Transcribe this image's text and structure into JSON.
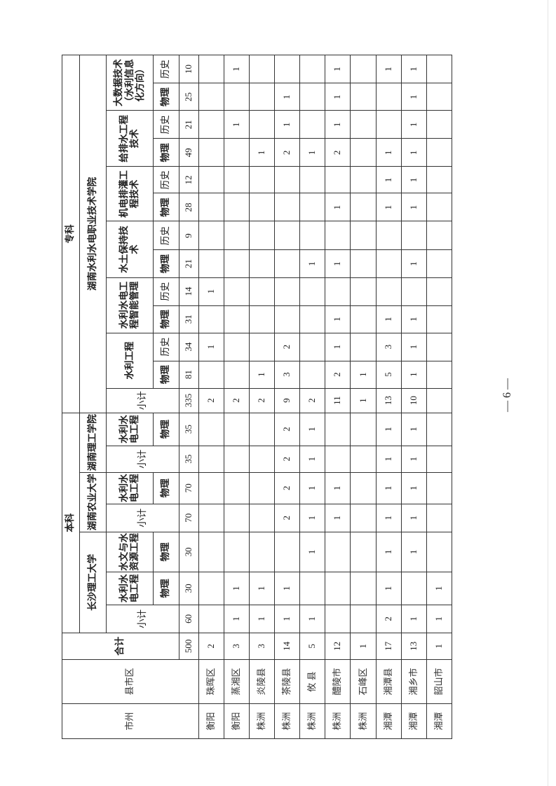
{
  "header": {
    "city": "市州",
    "district": "县市区",
    "total": "合计",
    "undergrad": "本科",
    "vocational": "专科",
    "institutions": [
      "长沙理工大学",
      "湖南农业大学",
      "湖南理工学院",
      "湖南水利水电职业技术学院"
    ],
    "subtotal": "小计",
    "majors": {
      "cs_hydro": "水利水电工程",
      "cs_hydrology": "水文与水资源工程",
      "agri_hydro": "水利水电工程",
      "hnit_hydro": "水利水电工程",
      "water_eng": "水利工程",
      "smart_mgmt": "水利水电工程智能管理",
      "soil": "水土保持技术",
      "irrigation": "机电排灌工程技术",
      "drainage": "给排水工程技术",
      "bigdata": "大数据技术（水利信息化方向）"
    },
    "physics": "物理",
    "history": "历史"
  },
  "totals": [
    "500",
    "60",
    "30",
    "30",
    "70",
    "70",
    "35",
    "35",
    "335",
    "81",
    "34",
    "31",
    "14",
    "21",
    "9",
    "28",
    "12",
    "49",
    "21",
    "25",
    "10"
  ],
  "rows": [
    {
      "city": "衡阳",
      "district": "珠晖区",
      "values": [
        "2",
        "",
        "",
        "",
        "",
        "",
        "",
        "",
        "2",
        "",
        "1",
        "",
        "1",
        "",
        "",
        "",
        "",
        "",
        "",
        "",
        ""
      ]
    },
    {
      "city": "衡阳",
      "district": "蒸湘区",
      "values": [
        "3",
        "1",
        "1",
        "",
        "",
        "",
        "",
        "",
        "2",
        "",
        "",
        "",
        "",
        "",
        "",
        "",
        "",
        "",
        "1",
        "",
        "1"
      ]
    },
    {
      "city": "株洲",
      "district": "炎陵县",
      "values": [
        "3",
        "1",
        "1",
        "",
        "",
        "",
        "",
        "",
        "2",
        "1",
        "",
        "",
        "",
        "",
        "",
        "",
        "",
        "1",
        "",
        "",
        ""
      ]
    },
    {
      "city": "株洲",
      "district": "茶陵县",
      "values": [
        "14",
        "1",
        "1",
        "",
        "2",
        "2",
        "2",
        "2",
        "9",
        "3",
        "2",
        "",
        "",
        "",
        "",
        "",
        "",
        "2",
        "1",
        "1",
        ""
      ]
    },
    {
      "city": "株洲",
      "district": "攸 县",
      "values": [
        "5",
        "1",
        "",
        "1",
        "1",
        "1",
        "1",
        "1",
        "2",
        "",
        "",
        "",
        "",
        "1",
        "",
        "",
        "",
        "1",
        "",
        "",
        ""
      ]
    },
    {
      "city": "株洲",
      "district": "醴陵市",
      "values": [
        "12",
        "",
        "",
        "",
        "1",
        "1",
        "",
        "",
        "11",
        "2",
        "1",
        "1",
        "",
        "1",
        "",
        "1",
        "",
        "2",
        "1",
        "1",
        "1"
      ]
    },
    {
      "city": "株洲",
      "district": "石峰区",
      "values": [
        "1",
        "",
        "",
        "",
        "",
        "",
        "",
        "",
        "1",
        "1",
        "",
        "",
        "",
        "",
        "",
        "",
        "",
        "",
        "",
        "",
        ""
      ]
    },
    {
      "city": "湘潭",
      "district": "湘潭县",
      "values": [
        "17",
        "2",
        "1",
        "1",
        "1",
        "1",
        "1",
        "1",
        "13",
        "5",
        "3",
        "1",
        "",
        "",
        "",
        "1",
        "1",
        "1",
        "",
        "",
        "1"
      ]
    },
    {
      "city": "湘潭",
      "district": "湘乡市",
      "values": [
        "13",
        "1",
        "",
        "1",
        "1",
        "1",
        "1",
        "1",
        "10",
        "1",
        "1",
        "1",
        "",
        "1",
        "",
        "1",
        "1",
        "1",
        "1",
        "1",
        "1"
      ]
    },
    {
      "city": "湘潭",
      "district": "韶山市",
      "values": [
        "1",
        "1",
        "1",
        "",
        "",
        "",
        "",
        "",
        "",
        "",
        "",
        "",
        "",
        "",
        "",
        "",
        "",
        "",
        "",
        "",
        ""
      ]
    }
  ],
  "page_number": "— 6 —"
}
